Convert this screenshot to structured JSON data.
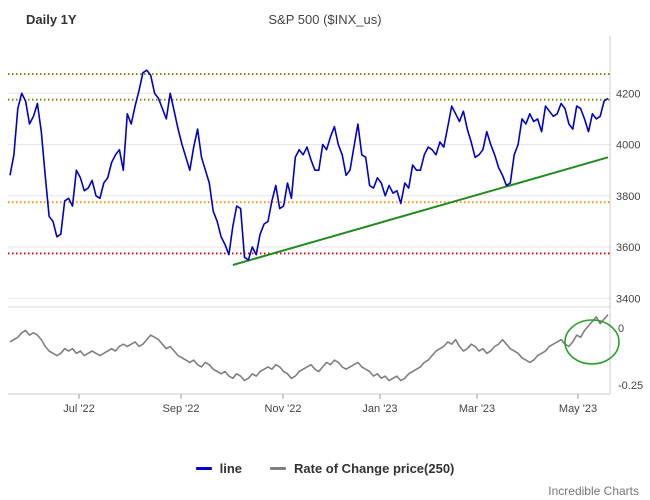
{
  "header": {
    "period_label": "Daily 1Y",
    "title": "S&P 500 ($INX_us)"
  },
  "footer": {
    "credit": "Incredible Charts"
  },
  "legend": [
    {
      "label": "line",
      "color": "#0000cc"
    },
    {
      "label": "Rate of Change price(250)",
      "color": "#808080"
    }
  ],
  "colors": {
    "price_line": "#0000cc",
    "roc_line": "#808080",
    "trendline": "#228b22",
    "level_olive": "#808000",
    "level_orange": "#ff8c00",
    "level_red": "#dd0000",
    "highlight_circle": "#2e9e2e"
  },
  "chart_data": [
    {
      "type": "line",
      "name": "price_panel",
      "x_ticks": [
        "Jul '22",
        "Sep '22",
        "Nov '22",
        "Jan '23",
        "Mar '23",
        "May '23"
      ],
      "y_ticks": [
        3400,
        3600,
        3800,
        4000,
        4200
      ],
      "ylim": [
        3370,
        4400
      ],
      "series": [
        {
          "name": "line",
          "values": [
            3880,
            3960,
            4140,
            4200,
            4170,
            4080,
            4110,
            4160,
            4050,
            3880,
            3720,
            3700,
            3640,
            3650,
            3780,
            3790,
            3760,
            3900,
            3870,
            3820,
            3830,
            3860,
            3800,
            3790,
            3850,
            3870,
            3930,
            3960,
            3980,
            3900,
            4120,
            4080,
            4150,
            4210,
            4280,
            4290,
            4270,
            4200,
            4180,
            4140,
            4100,
            4200,
            4130,
            4060,
            4000,
            3950,
            3900,
            3990,
            4060,
            3950,
            3900,
            3850,
            3740,
            3700,
            3640,
            3610,
            3570,
            3680,
            3760,
            3750,
            3560,
            3550,
            3600,
            3570,
            3650,
            3690,
            3700,
            3780,
            3840,
            3750,
            3760,
            3850,
            3790,
            3950,
            3980,
            3960,
            3990,
            3940,
            3900,
            3900,
            4000,
            3980,
            4030,
            4070,
            4000,
            3960,
            3880,
            3900,
            3990,
            4080,
            3960,
            3950,
            3840,
            3830,
            3870,
            3850,
            3800,
            3840,
            3810,
            3820,
            3770,
            3850,
            3830,
            3920,
            3900,
            3900,
            3960,
            3990,
            3980,
            3960,
            4010,
            3990,
            4070,
            4150,
            4120,
            4090,
            4130,
            4060,
            4010,
            3950,
            3960,
            3980,
            4050,
            4000,
            3960,
            3910,
            3880,
            3840,
            3850,
            3960,
            4000,
            4100,
            4080,
            4120,
            4090,
            4100,
            4050,
            4150,
            4130,
            4110,
            4120,
            4160,
            4140,
            4080,
            4060,
            4150,
            4140,
            4100,
            4050,
            4120,
            4100,
            4110,
            4170,
            4180
          ]
        }
      ],
      "levels": [
        {
          "value": 4275,
          "style": "dotted",
          "color": "#808000"
        },
        {
          "value": 4175,
          "style": "dotted",
          "color": "#808000"
        },
        {
          "value": 3775,
          "style": "dotted",
          "color": "#ff8c00"
        },
        {
          "value": 3575,
          "style": "dotted",
          "color": "#dd0000"
        }
      ],
      "trendline": {
        "from": {
          "date": "Oct 2022",
          "value": 3530
        },
        "to": {
          "date": "May 2023",
          "value": 3950
        }
      }
    },
    {
      "type": "line",
      "name": "roc_panel",
      "y_ticks": [
        0,
        -0.25
      ],
      "ylim": [
        -0.28,
        0.08
      ],
      "series": [
        {
          "name": "Rate of Change price(250)",
          "values": [
            -0.06,
            -0.05,
            -0.04,
            -0.02,
            -0.01,
            -0.03,
            -0.02,
            -0.03,
            -0.05,
            -0.08,
            -0.1,
            -0.11,
            -0.12,
            -0.11,
            -0.09,
            -0.1,
            -0.09,
            -0.11,
            -0.1,
            -0.12,
            -0.11,
            -0.1,
            -0.11,
            -0.12,
            -0.11,
            -0.1,
            -0.09,
            -0.1,
            -0.08,
            -0.07,
            -0.08,
            -0.07,
            -0.06,
            -0.08,
            -0.07,
            -0.05,
            -0.03,
            -0.04,
            -0.05,
            -0.07,
            -0.09,
            -0.08,
            -0.1,
            -0.12,
            -0.13,
            -0.14,
            -0.15,
            -0.14,
            -0.16,
            -0.17,
            -0.15,
            -0.16,
            -0.18,
            -0.19,
            -0.2,
            -0.19,
            -0.21,
            -0.22,
            -0.2,
            -0.21,
            -0.23,
            -0.22,
            -0.2,
            -0.21,
            -0.19,
            -0.18,
            -0.17,
            -0.18,
            -0.16,
            -0.17,
            -0.19,
            -0.2,
            -0.22,
            -0.21,
            -0.19,
            -0.18,
            -0.17,
            -0.16,
            -0.18,
            -0.19,
            -0.17,
            -0.15,
            -0.16,
            -0.14,
            -0.15,
            -0.17,
            -0.18,
            -0.17,
            -0.16,
            -0.15,
            -0.17,
            -0.18,
            -0.19,
            -0.21,
            -0.2,
            -0.22,
            -0.21,
            -0.23,
            -0.22,
            -0.21,
            -0.23,
            -0.22,
            -0.2,
            -0.19,
            -0.18,
            -0.17,
            -0.15,
            -0.14,
            -0.12,
            -0.1,
            -0.09,
            -0.08,
            -0.06,
            -0.07,
            -0.05,
            -0.08,
            -0.1,
            -0.09,
            -0.07,
            -0.08,
            -0.1,
            -0.09,
            -0.11,
            -0.1,
            -0.08,
            -0.07,
            -0.05,
            -0.07,
            -0.09,
            -0.1,
            -0.11,
            -0.13,
            -0.14,
            -0.15,
            -0.14,
            -0.12,
            -0.11,
            -0.1,
            -0.08,
            -0.07,
            -0.06,
            -0.05,
            -0.07,
            -0.08,
            -0.06,
            -0.03,
            -0.04,
            -0.01,
            0.01,
            0.03,
            0.05,
            0.02,
            0.04,
            0.06
          ]
        }
      ]
    }
  ]
}
